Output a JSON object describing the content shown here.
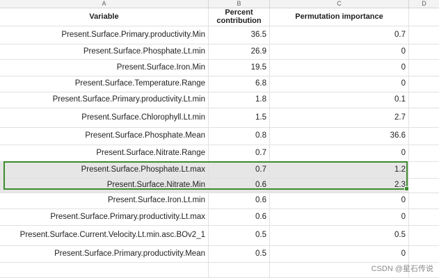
{
  "columns": [
    "A",
    "B",
    "C",
    "D"
  ],
  "header": {
    "variable": "Variable",
    "percent": "Percent\ncontribution",
    "permutation": "Permutation importance"
  },
  "rows": [
    {
      "variable": "Present.Surface.Primary.productivity.Min",
      "percent": "36.5",
      "permutation": "0.7"
    },
    {
      "variable": "Present.Surface.Phosphate.Lt.min",
      "percent": "26.9",
      "permutation": "0"
    },
    {
      "variable": "Present.Surface.Iron.Min",
      "percent": "19.5",
      "permutation": "0"
    },
    {
      "variable": "Present.Surface.Temperature.Range",
      "percent": "6.8",
      "permutation": "0"
    },
    {
      "variable": "Present.Surface.Primary.productivity.Lt.min",
      "percent": "1.8",
      "permutation": "0.1"
    },
    {
      "variable": "Present.Surface.Chlorophyll.Lt.min",
      "percent": "1.5",
      "permutation": "2.7"
    },
    {
      "variable": "Present.Surface.Phosphate.Mean",
      "percent": "0.8",
      "permutation": "36.6"
    },
    {
      "variable": "Present.Surface.Nitrate.Range",
      "percent": "0.7",
      "permutation": "0"
    },
    {
      "variable": "Present.Surface.Phosphate.Lt.max",
      "percent": "0.7",
      "permutation": "1.2"
    },
    {
      "variable": "Present.Surface.Nitrate.Min",
      "percent": "0.6",
      "permutation": "2.3"
    },
    {
      "variable": "Present.Surface.Iron.Lt.min",
      "percent": "0.6",
      "permutation": "0"
    },
    {
      "variable": "Present.Surface.Primary.productivity.Lt.max",
      "percent": "0.6",
      "permutation": "0"
    },
    {
      "variable": "Present.Surface.Current.Velocity.Lt.min.asc.BOv2_1",
      "percent": "0.5",
      "permutation": "0.5"
    },
    {
      "variable": "Present.Surface.Primary.productivity.Mean",
      "percent": "0.5",
      "permutation": "0"
    }
  ],
  "watermark": "CSDN @星石传说"
}
